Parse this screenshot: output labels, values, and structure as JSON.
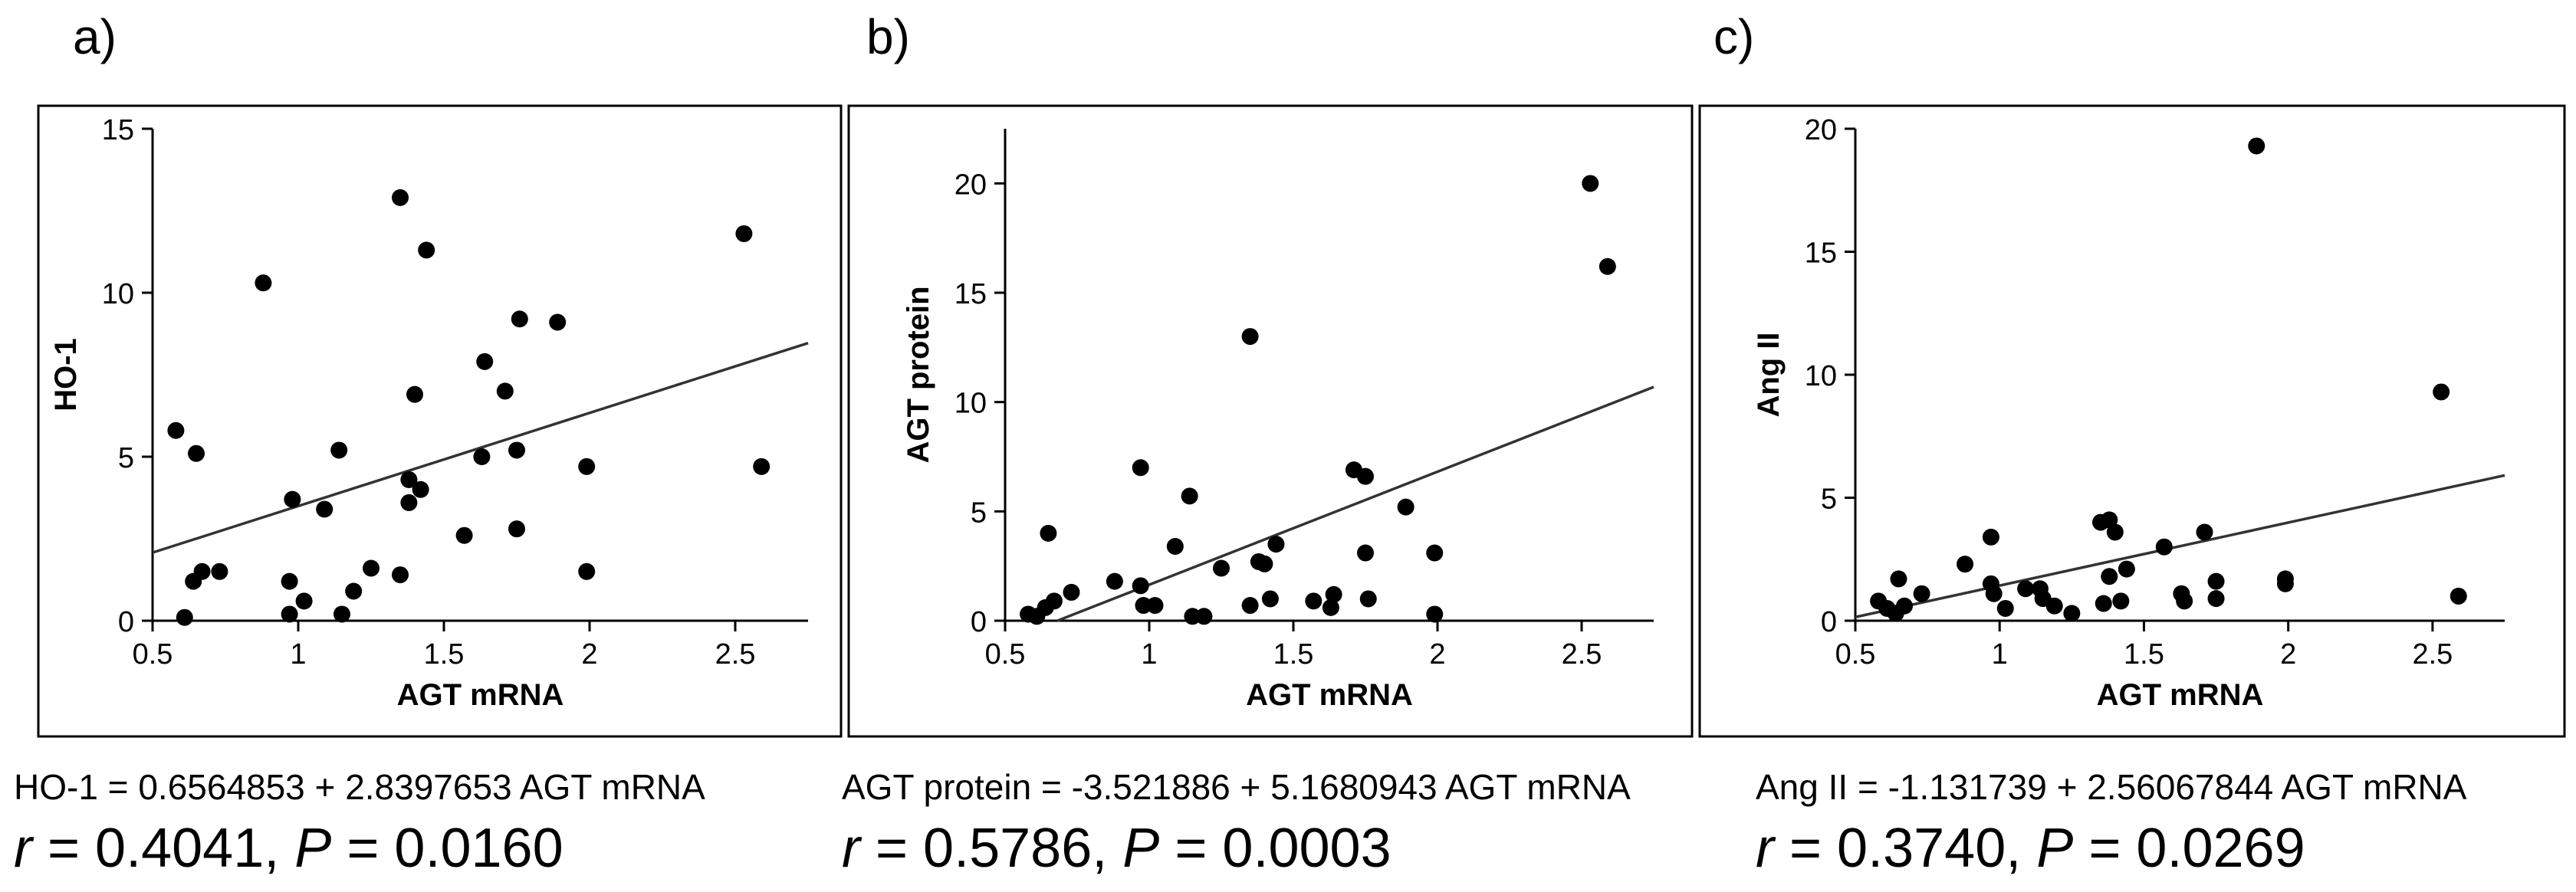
{
  "chart_data": [
    {
      "type": "scatter",
      "panel_label": "a)",
      "title": "",
      "xlabel": "AGT mRNA",
      "ylabel": "HO-1",
      "xlim": [
        0.5,
        2.75
      ],
      "ylim": [
        0,
        15
      ],
      "xticks": [
        0.5,
        1,
        1.5,
        2,
        2.5
      ],
      "xtick_labels": [
        "0.5",
        "1",
        "1.5",
        "2",
        "2.5"
      ],
      "yticks": [
        0,
        5,
        10,
        15
      ],
      "ytick_labels": [
        "0",
        "5",
        "10",
        "15"
      ],
      "grid": false,
      "points": {
        "x": [
          0.58,
          0.61,
          0.64,
          0.65,
          0.67,
          0.73,
          0.88,
          0.97,
          0.97,
          0.98,
          1.02,
          1.09,
          1.14,
          1.15,
          1.19,
          1.25,
          1.35,
          1.35,
          1.38,
          1.38,
          1.4,
          1.42,
          1.44,
          1.57,
          1.63,
          1.64,
          1.71,
          1.75,
          1.75,
          1.76,
          1.89,
          1.99,
          1.99,
          2.53,
          2.59
        ],
        "y": [
          5.8,
          0.1,
          1.2,
          5.1,
          1.5,
          1.5,
          10.3,
          0.2,
          1.2,
          3.7,
          0.6,
          3.4,
          5.2,
          0.2,
          0.9,
          1.6,
          12.9,
          1.4,
          3.6,
          4.3,
          6.9,
          4.0,
          11.3,
          2.6,
          5.0,
          7.9,
          7.0,
          2.8,
          5.2,
          9.2,
          9.1,
          4.7,
          1.5,
          11.8,
          4.7
        ]
      },
      "regression": {
        "intercept": 0.6564853,
        "slope": 2.8397653
      },
      "equation": "HO-1 = 0.6564853 + 2.8397653 AGT mRNA",
      "stats": {
        "r_label": "r",
        "r_value": "= 0.4041,",
        "p_label": "P",
        "p_value": "= 0.0160"
      }
    },
    {
      "type": "scatter",
      "panel_label": "b)",
      "title": "",
      "xlabel": "AGT mRNA",
      "ylabel": "AGT protein",
      "xlim": [
        0.5,
        2.75
      ],
      "ylim": [
        0,
        22.5
      ],
      "xticks": [
        0.5,
        1,
        1.5,
        2,
        2.5
      ],
      "xtick_labels": [
        "0.5",
        "1",
        "1.5",
        "2",
        "2.5"
      ],
      "yticks": [
        0,
        5,
        10,
        15,
        20
      ],
      "ytick_labels": [
        "0",
        "5",
        "10",
        "15",
        "20"
      ],
      "grid": false,
      "points": {
        "x": [
          0.58,
          0.61,
          0.64,
          0.65,
          0.67,
          0.73,
          0.88,
          0.97,
          0.97,
          0.98,
          1.02,
          1.09,
          1.14,
          1.15,
          1.19,
          1.25,
          1.35,
          1.35,
          1.38,
          1.4,
          1.42,
          1.44,
          1.57,
          1.63,
          1.64,
          1.71,
          1.75,
          1.75,
          1.76,
          1.89,
          1.99,
          1.99,
          2.53,
          2.59
        ],
        "y": [
          0.3,
          0.2,
          0.6,
          4.0,
          0.9,
          1.3,
          1.8,
          7.0,
          1.6,
          0.7,
          0.7,
          3.4,
          5.7,
          0.2,
          0.2,
          2.4,
          13.0,
          0.7,
          2.7,
          2.6,
          1.0,
          3.5,
          0.9,
          0.6,
          1.2,
          6.9,
          6.6,
          3.1,
          1.0,
          5.2,
          3.1,
          0.3,
          20.0,
          16.2
        ]
      },
      "regression": {
        "intercept": -3.521886,
        "slope": 5.1680943
      },
      "equation": "AGT protein = -3.521886 + 5.1680943 AGT mRNA",
      "stats": {
        "r_label": "r",
        "r_value": "= 0.5786,",
        "p_label": "P",
        "p_value": "= 0.0003"
      }
    },
    {
      "type": "scatter",
      "panel_label": "c)",
      "title": "",
      "xlabel": "AGT mRNA",
      "ylabel": "Ang II",
      "xlim": [
        0.5,
        2.75
      ],
      "ylim": [
        0,
        20
      ],
      "xticks": [
        0.5,
        1,
        1.5,
        2,
        2.5
      ],
      "xtick_labels": [
        "0.5",
        "1",
        "1.5",
        "2",
        "2.5"
      ],
      "yticks": [
        0,
        5,
        10,
        15,
        20
      ],
      "ytick_labels": [
        "0",
        "5",
        "10",
        "15",
        "20"
      ],
      "grid": false,
      "points": {
        "x": [
          0.58,
          0.61,
          0.64,
          0.65,
          0.67,
          0.73,
          0.88,
          0.97,
          0.97,
          0.98,
          1.02,
          1.09,
          1.14,
          1.15,
          1.19,
          1.25,
          1.35,
          1.36,
          1.38,
          1.38,
          1.4,
          1.42,
          1.44,
          1.57,
          1.63,
          1.64,
          1.71,
          1.75,
          1.75,
          1.89,
          1.99,
          1.99,
          2.53,
          2.59
        ],
        "y": [
          0.8,
          0.5,
          0.3,
          1.7,
          0.6,
          1.1,
          2.3,
          3.4,
          1.5,
          1.1,
          0.5,
          1.3,
          1.3,
          0.9,
          0.6,
          0.3,
          4.0,
          0.7,
          4.1,
          1.8,
          3.6,
          0.8,
          2.1,
          3.0,
          1.1,
          0.8,
          3.6,
          1.6,
          0.9,
          19.3,
          1.7,
          1.5,
          9.3,
          1.0
        ]
      },
      "regression": {
        "intercept": -1.131739,
        "slope": 2.56067844
      },
      "equation": "Ang II = -1.131739 + 2.56067844 AGT mRNA",
      "stats": {
        "r_label": "r",
        "r_value": "= 0.3740,",
        "p_label": "P",
        "p_value": "= 0.0269"
      }
    }
  ]
}
